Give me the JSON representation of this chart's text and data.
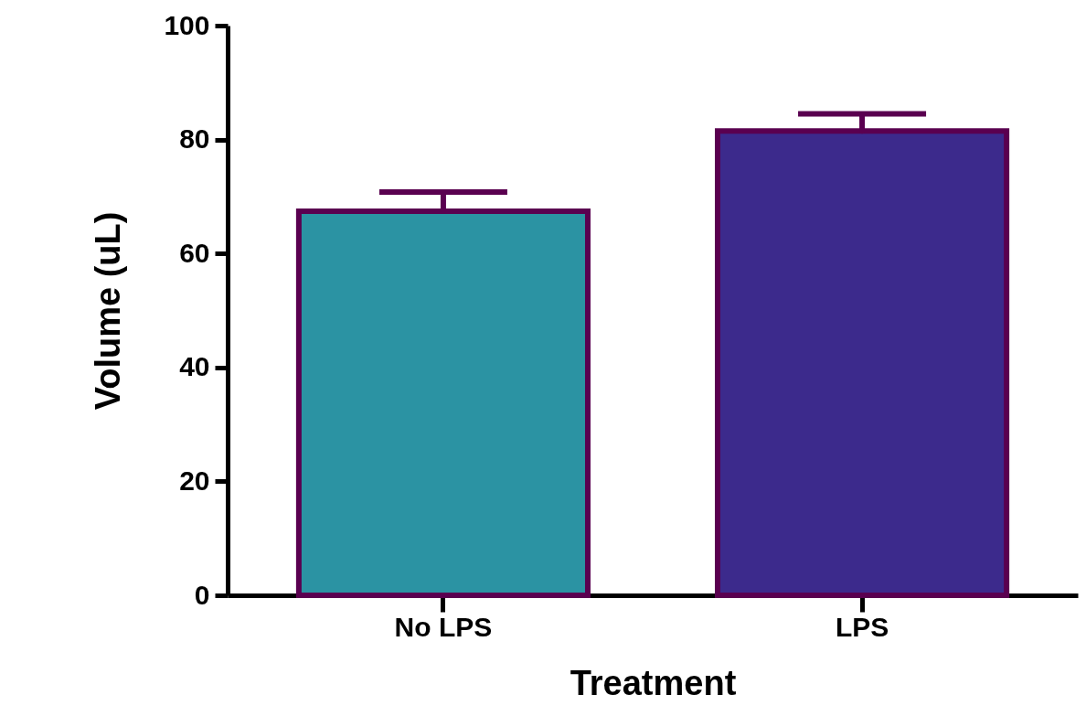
{
  "chart_data": {
    "type": "bar",
    "xlabel": "Treatment",
    "ylabel": "Volume (uL)",
    "categories": [
      "No LPS",
      "LPS"
    ],
    "values": [
      67.4,
      81.5
    ],
    "errors": [
      3.4,
      3.0
    ],
    "colors": [
      "#2b93a3",
      "#3c2a8c"
    ],
    "ylim": [
      0,
      100
    ],
    "yticks": [
      0,
      20,
      40,
      60,
      80,
      100
    ],
    "grid": false
  }
}
